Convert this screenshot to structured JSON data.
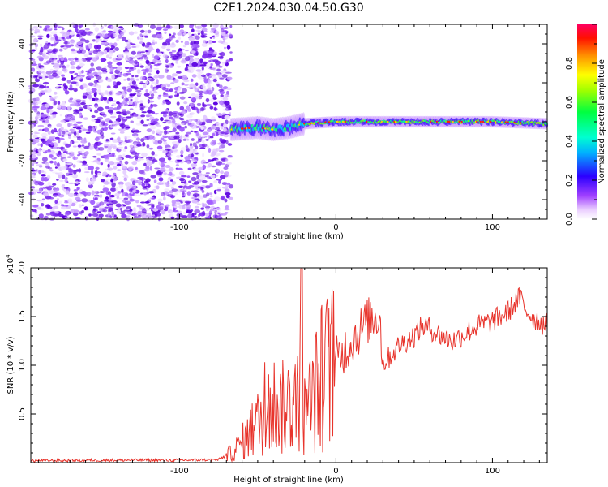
{
  "title": "C2E1.2024.030.04.50.G30",
  "colors": {
    "snr_line": "#e8342c",
    "axis": "#000000",
    "background": "#ffffff",
    "colormap": [
      "#ffffff",
      "#e9ccff",
      "#b46cff",
      "#7a1fe8",
      "#2b00ff",
      "#00c8ff",
      "#00ff80",
      "#40ff00",
      "#ffff00",
      "#ff8000",
      "#ff0000",
      "#ff0050"
    ]
  },
  "chart_data": [
    {
      "type": "heatmap",
      "title": "",
      "xlabel": "Height of straight line (km)",
      "ylabel": "Frequency (Hz)",
      "xlim": [
        -195,
        135
      ],
      "ylim": [
        -50,
        50
      ],
      "xticks": [
        "-100",
        "0",
        "100"
      ],
      "yticks": [
        "-40",
        "-20",
        "0",
        "20",
        "40"
      ],
      "colorbar": {
        "label": "Normalized spectral amplitude",
        "range": [
          0,
          1
        ],
        "ticks": [
          "0.0",
          "0.2",
          "0.4",
          "0.6",
          "0.8"
        ],
        "position": "right"
      },
      "description_points": {
        "noise_region_x": [
          -195,
          -67
        ],
        "signal_center_hz": [
          {
            "x": -67,
            "y": -4
          },
          {
            "x": -50,
            "y": -3
          },
          {
            "x": -40,
            "y": -4
          },
          {
            "x": -30,
            "y": -3
          },
          {
            "x": -20,
            "y": -1
          },
          {
            "x": 0,
            "y": 0
          },
          {
            "x": 20,
            "y": 0
          },
          {
            "x": 60,
            "y": 0
          },
          {
            "x": 100,
            "y": 0
          },
          {
            "x": 135,
            "y": -1
          }
        ]
      },
      "grid": false
    },
    {
      "type": "line",
      "title": "",
      "xlabel": "Height of straight line (km)",
      "ylabel": "SNR (10 * v/v)",
      "yscale_label": "(x10^4)",
      "yscale_base": "x10",
      "yscale_exp": "4",
      "xlim": [
        -195,
        135
      ],
      "ylim": [
        0,
        20000
      ],
      "xticks": [
        "-100",
        "0",
        "100"
      ],
      "yticks": [
        "0.5",
        "1.0",
        "1.5",
        "2.0"
      ],
      "series": [
        {
          "name": "",
          "x": [
            -195,
            -150,
            -100,
            -75,
            -65,
            -55,
            -45,
            -40,
            -35,
            -30,
            -25,
            -22,
            -20,
            -15,
            -10,
            -5,
            0,
            5,
            10,
            15,
            20,
            25,
            28,
            30,
            32,
            35,
            40,
            45,
            50,
            55,
            60,
            65,
            70,
            75,
            80,
            85,
            90,
            95,
            100,
            105,
            110,
            115,
            118,
            120,
            125,
            130,
            135
          ],
          "y": [
            200,
            250,
            250,
            300,
            1200,
            3000,
            5000,
            6000,
            5500,
            6000,
            6500,
            7000,
            5000,
            6500,
            8500,
            9500,
            10500,
            11500,
            12500,
            13500,
            14500,
            15000,
            15200,
            10200,
            10500,
            11000,
            12000,
            12500,
            13000,
            14000,
            13800,
            13200,
            12800,
            12500,
            13000,
            13500,
            14000,
            14300,
            14500,
            15000,
            15500,
            16500,
            17000,
            16000,
            15000,
            14500,
            14000
          ]
        }
      ],
      "grid": false
    }
  ]
}
